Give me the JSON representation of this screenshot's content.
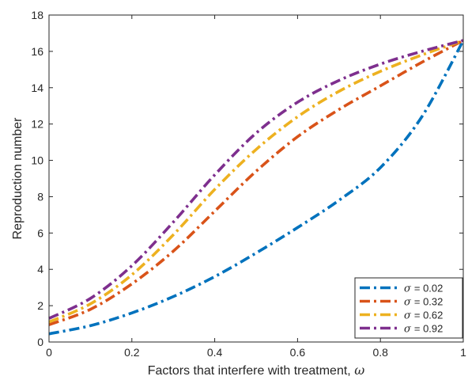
{
  "chart_data": {
    "type": "line",
    "xlabel": "Factors that interfere with treatment, ",
    "xlabel_symbol": "ω",
    "ylabel": "Reproduction number",
    "xlim": [
      0,
      1
    ],
    "ylim": [
      0,
      18
    ],
    "xticks": [
      0,
      0.2,
      0.4,
      0.6,
      0.8,
      1
    ],
    "yticks": [
      0,
      2,
      4,
      6,
      8,
      10,
      12,
      14,
      16,
      18
    ],
    "xtick_labels": [
      "0",
      "0.2",
      "0.4",
      "0.6",
      "0.8",
      "1"
    ],
    "ytick_labels": [
      "0",
      "2",
      "4",
      "6",
      "8",
      "10",
      "12",
      "14",
      "16",
      "18"
    ],
    "grid": false,
    "legend_position": "bottom-right",
    "x": [
      0,
      0.1,
      0.2,
      0.3,
      0.4,
      0.5,
      0.6,
      0.7,
      0.8,
      0.9,
      1.0
    ],
    "series": [
      {
        "name": "= 0.02",
        "symbol": "σ",
        "color": "#0072BD",
        "values": [
          0.45,
          0.9,
          1.6,
          2.5,
          3.6,
          4.9,
          6.3,
          7.8,
          9.6,
          12.4,
          16.6
        ]
      },
      {
        "name": "= 0.32",
        "symbol": "σ",
        "color": "#D95319",
        "values": [
          0.95,
          1.8,
          3.2,
          5.0,
          7.2,
          9.4,
          11.3,
          12.8,
          14.1,
          15.4,
          16.6
        ]
      },
      {
        "name": "= 0.62",
        "symbol": "σ",
        "color": "#EDB120",
        "values": [
          1.1,
          2.1,
          3.7,
          5.9,
          8.4,
          10.6,
          12.4,
          13.8,
          14.9,
          15.8,
          16.6
        ]
      },
      {
        "name": "= 0.92",
        "symbol": "σ",
        "color": "#7E2F8E",
        "values": [
          1.3,
          2.4,
          4.2,
          6.6,
          9.2,
          11.5,
          13.2,
          14.4,
          15.3,
          16.0,
          16.6
        ]
      }
    ]
  }
}
